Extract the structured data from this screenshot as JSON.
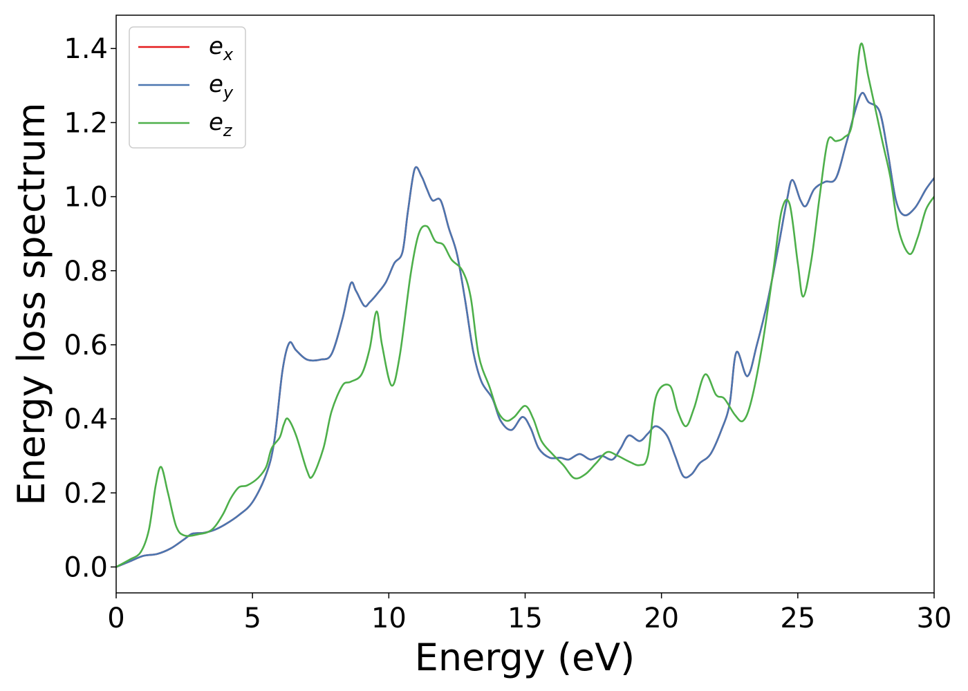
{
  "chart_data": {
    "type": "line",
    "xlabel": "Energy (eV)",
    "ylabel": "Energy loss spectrum",
    "xlim": [
      0,
      30
    ],
    "ylim": [
      -0.07,
      1.49
    ],
    "xticks": [
      0,
      5,
      10,
      15,
      20,
      25,
      30
    ],
    "xtick_labels": [
      "0",
      "5",
      "10",
      "15",
      "20",
      "25",
      "30"
    ],
    "yticks": [
      0.0,
      0.2,
      0.4,
      0.6,
      0.8,
      1.0,
      1.2,
      1.4
    ],
    "ytick_labels": [
      "0.0",
      "0.2",
      "0.4",
      "0.6",
      "0.8",
      "1.0",
      "1.2",
      "1.4"
    ],
    "grid": false,
    "legend_position": "top-left",
    "series": [
      {
        "name": "e_x",
        "legend_base": "e",
        "legend_sub": "x",
        "color": "#e41a1c",
        "points": [
          [
            0,
            0.0
          ],
          [
            0.5,
            0.015
          ],
          [
            1,
            0.03
          ],
          [
            1.5,
            0.035
          ],
          [
            2,
            0.05
          ],
          [
            2.5,
            0.075
          ],
          [
            2.8,
            0.09
          ],
          [
            3.2,
            0.092
          ],
          [
            3.6,
            0.1
          ],
          [
            4,
            0.115
          ],
          [
            4.5,
            0.14
          ],
          [
            5,
            0.175
          ],
          [
            5.5,
            0.25
          ],
          [
            5.8,
            0.34
          ],
          [
            6.1,
            0.53
          ],
          [
            6.35,
            0.605
          ],
          [
            6.6,
            0.585
          ],
          [
            7,
            0.56
          ],
          [
            7.5,
            0.56
          ],
          [
            7.9,
            0.575
          ],
          [
            8.3,
            0.67
          ],
          [
            8.6,
            0.765
          ],
          [
            8.8,
            0.745
          ],
          [
            9.1,
            0.705
          ],
          [
            9.3,
            0.715
          ],
          [
            9.6,
            0.74
          ],
          [
            9.9,
            0.77
          ],
          [
            10.2,
            0.82
          ],
          [
            10.5,
            0.85
          ],
          [
            10.7,
            0.96
          ],
          [
            10.95,
            1.075
          ],
          [
            11.2,
            1.055
          ],
          [
            11.4,
            1.02
          ],
          [
            11.6,
            0.99
          ],
          [
            11.9,
            0.99
          ],
          [
            12.2,
            0.915
          ],
          [
            12.5,
            0.845
          ],
          [
            12.8,
            0.72
          ],
          [
            13.1,
            0.58
          ],
          [
            13.4,
            0.5
          ],
          [
            13.8,
            0.455
          ],
          [
            14.1,
            0.395
          ],
          [
            14.5,
            0.37
          ],
          [
            14.9,
            0.405
          ],
          [
            15.2,
            0.375
          ],
          [
            15.5,
            0.32
          ],
          [
            15.9,
            0.295
          ],
          [
            16.3,
            0.295
          ],
          [
            16.6,
            0.29
          ],
          [
            17,
            0.305
          ],
          [
            17.4,
            0.29
          ],
          [
            17.8,
            0.3
          ],
          [
            18.2,
            0.29
          ],
          [
            18.5,
            0.32
          ],
          [
            18.8,
            0.355
          ],
          [
            19.2,
            0.34
          ],
          [
            19.5,
            0.36
          ],
          [
            19.8,
            0.38
          ],
          [
            20.2,
            0.355
          ],
          [
            20.5,
            0.3
          ],
          [
            20.8,
            0.245
          ],
          [
            21.1,
            0.25
          ],
          [
            21.4,
            0.28
          ],
          [
            21.8,
            0.305
          ],
          [
            22.2,
            0.37
          ],
          [
            22.5,
            0.44
          ],
          [
            22.75,
            0.58
          ],
          [
            23.15,
            0.515
          ],
          [
            23.5,
            0.6
          ],
          [
            23.9,
            0.72
          ],
          [
            24.3,
            0.87
          ],
          [
            24.6,
            0.99
          ],
          [
            24.8,
            1.045
          ],
          [
            25.1,
            0.99
          ],
          [
            25.3,
            0.975
          ],
          [
            25.6,
            1.02
          ],
          [
            26,
            1.04
          ],
          [
            26.4,
            1.05
          ],
          [
            26.8,
            1.15
          ],
          [
            27.3,
            1.275
          ],
          [
            27.6,
            1.255
          ],
          [
            28,
            1.23
          ],
          [
            28.3,
            1.12
          ],
          [
            28.6,
            0.99
          ],
          [
            28.9,
            0.95
          ],
          [
            29.3,
            0.97
          ],
          [
            29.7,
            1.02
          ],
          [
            30,
            1.05
          ]
        ]
      },
      {
        "name": "e_y",
        "legend_base": "e",
        "legend_sub": "y",
        "color": "#4a76b0",
        "points": [
          [
            0,
            0.0
          ],
          [
            0.5,
            0.015
          ],
          [
            1,
            0.03
          ],
          [
            1.5,
            0.035
          ],
          [
            2,
            0.05
          ],
          [
            2.5,
            0.075
          ],
          [
            2.8,
            0.09
          ],
          [
            3.2,
            0.092
          ],
          [
            3.6,
            0.1
          ],
          [
            4,
            0.115
          ],
          [
            4.5,
            0.14
          ],
          [
            5,
            0.175
          ],
          [
            5.5,
            0.25
          ],
          [
            5.8,
            0.34
          ],
          [
            6.1,
            0.53
          ],
          [
            6.35,
            0.605
          ],
          [
            6.6,
            0.585
          ],
          [
            7,
            0.56
          ],
          [
            7.5,
            0.56
          ],
          [
            7.9,
            0.575
          ],
          [
            8.3,
            0.67
          ],
          [
            8.6,
            0.765
          ],
          [
            8.8,
            0.745
          ],
          [
            9.1,
            0.705
          ],
          [
            9.3,
            0.715
          ],
          [
            9.6,
            0.74
          ],
          [
            9.9,
            0.77
          ],
          [
            10.2,
            0.82
          ],
          [
            10.5,
            0.85
          ],
          [
            10.7,
            0.96
          ],
          [
            10.95,
            1.075
          ],
          [
            11.2,
            1.055
          ],
          [
            11.4,
            1.02
          ],
          [
            11.6,
            0.99
          ],
          [
            11.9,
            0.99
          ],
          [
            12.2,
            0.915
          ],
          [
            12.5,
            0.845
          ],
          [
            12.8,
            0.72
          ],
          [
            13.1,
            0.58
          ],
          [
            13.4,
            0.5
          ],
          [
            13.8,
            0.455
          ],
          [
            14.1,
            0.395
          ],
          [
            14.5,
            0.37
          ],
          [
            14.9,
            0.405
          ],
          [
            15.2,
            0.375
          ],
          [
            15.5,
            0.32
          ],
          [
            15.9,
            0.295
          ],
          [
            16.3,
            0.295
          ],
          [
            16.6,
            0.29
          ],
          [
            17,
            0.305
          ],
          [
            17.4,
            0.29
          ],
          [
            17.8,
            0.3
          ],
          [
            18.2,
            0.29
          ],
          [
            18.5,
            0.32
          ],
          [
            18.8,
            0.355
          ],
          [
            19.2,
            0.34
          ],
          [
            19.5,
            0.36
          ],
          [
            19.8,
            0.38
          ],
          [
            20.2,
            0.355
          ],
          [
            20.5,
            0.3
          ],
          [
            20.8,
            0.245
          ],
          [
            21.1,
            0.25
          ],
          [
            21.4,
            0.28
          ],
          [
            21.8,
            0.305
          ],
          [
            22.2,
            0.37
          ],
          [
            22.5,
            0.44
          ],
          [
            22.75,
            0.58
          ],
          [
            23.15,
            0.515
          ],
          [
            23.5,
            0.6
          ],
          [
            23.9,
            0.72
          ],
          [
            24.3,
            0.87
          ],
          [
            24.6,
            0.99
          ],
          [
            24.8,
            1.045
          ],
          [
            25.1,
            0.99
          ],
          [
            25.3,
            0.975
          ],
          [
            25.6,
            1.02
          ],
          [
            26,
            1.04
          ],
          [
            26.4,
            1.05
          ],
          [
            26.8,
            1.15
          ],
          [
            27.3,
            1.275
          ],
          [
            27.6,
            1.255
          ],
          [
            28,
            1.23
          ],
          [
            28.3,
            1.12
          ],
          [
            28.6,
            0.99
          ],
          [
            28.9,
            0.95
          ],
          [
            29.3,
            0.97
          ],
          [
            29.7,
            1.02
          ],
          [
            30,
            1.05
          ]
        ]
      },
      {
        "name": "e_z",
        "legend_base": "e",
        "legend_sub": "z",
        "color": "#4daf4a",
        "points": [
          [
            0,
            0.0
          ],
          [
            0.5,
            0.02
          ],
          [
            0.9,
            0.04
          ],
          [
            1.2,
            0.1
          ],
          [
            1.45,
            0.22
          ],
          [
            1.65,
            0.27
          ],
          [
            1.9,
            0.2
          ],
          [
            2.2,
            0.11
          ],
          [
            2.5,
            0.085
          ],
          [
            3,
            0.088
          ],
          [
            3.5,
            0.1
          ],
          [
            3.9,
            0.14
          ],
          [
            4.2,
            0.185
          ],
          [
            4.5,
            0.215
          ],
          [
            4.8,
            0.22
          ],
          [
            5.2,
            0.24
          ],
          [
            5.5,
            0.27
          ],
          [
            5.7,
            0.32
          ],
          [
            6,
            0.35
          ],
          [
            6.15,
            0.385
          ],
          [
            6.3,
            0.4
          ],
          [
            6.6,
            0.355
          ],
          [
            7,
            0.26
          ],
          [
            7.2,
            0.245
          ],
          [
            7.6,
            0.32
          ],
          [
            7.9,
            0.42
          ],
          [
            8.3,
            0.49
          ],
          [
            8.6,
            0.5
          ],
          [
            9,
            0.52
          ],
          [
            9.3,
            0.59
          ],
          [
            9.55,
            0.69
          ],
          [
            9.75,
            0.6
          ],
          [
            10.1,
            0.49
          ],
          [
            10.4,
            0.57
          ],
          [
            10.8,
            0.79
          ],
          [
            11.1,
            0.9
          ],
          [
            11.4,
            0.92
          ],
          [
            11.7,
            0.88
          ],
          [
            12,
            0.87
          ],
          [
            12.3,
            0.83
          ],
          [
            12.7,
            0.8
          ],
          [
            13,
            0.73
          ],
          [
            13.3,
            0.57
          ],
          [
            13.7,
            0.485
          ],
          [
            14,
            0.42
          ],
          [
            14.3,
            0.395
          ],
          [
            14.6,
            0.405
          ],
          [
            15,
            0.435
          ],
          [
            15.3,
            0.4
          ],
          [
            15.6,
            0.34
          ],
          [
            16,
            0.305
          ],
          [
            16.4,
            0.275
          ],
          [
            16.8,
            0.24
          ],
          [
            17.2,
            0.25
          ],
          [
            17.6,
            0.28
          ],
          [
            18,
            0.31
          ],
          [
            18.4,
            0.3
          ],
          [
            18.8,
            0.285
          ],
          [
            19.2,
            0.275
          ],
          [
            19.5,
            0.3
          ],
          [
            19.8,
            0.46
          ],
          [
            20.3,
            0.49
          ],
          [
            20.6,
            0.42
          ],
          [
            20.9,
            0.38
          ],
          [
            21.2,
            0.43
          ],
          [
            21.6,
            0.52
          ],
          [
            22,
            0.465
          ],
          [
            22.3,
            0.455
          ],
          [
            22.7,
            0.41
          ],
          [
            23,
            0.395
          ],
          [
            23.3,
            0.45
          ],
          [
            23.7,
            0.6
          ],
          [
            24.1,
            0.8
          ],
          [
            24.4,
            0.96
          ],
          [
            24.7,
            0.98
          ],
          [
            25,
            0.82
          ],
          [
            25.2,
            0.73
          ],
          [
            25.5,
            0.83
          ],
          [
            25.8,
            1.0
          ],
          [
            26.1,
            1.15
          ],
          [
            26.4,
            1.15
          ],
          [
            26.7,
            1.16
          ],
          [
            27,
            1.2
          ],
          [
            27.3,
            1.41
          ],
          [
            27.6,
            1.32
          ],
          [
            28.1,
            1.15
          ],
          [
            28.4,
            1.05
          ],
          [
            28.7,
            0.91
          ],
          [
            29.1,
            0.845
          ],
          [
            29.4,
            0.89
          ],
          [
            29.7,
            0.965
          ],
          [
            30,
            1.0
          ]
        ]
      }
    ]
  }
}
